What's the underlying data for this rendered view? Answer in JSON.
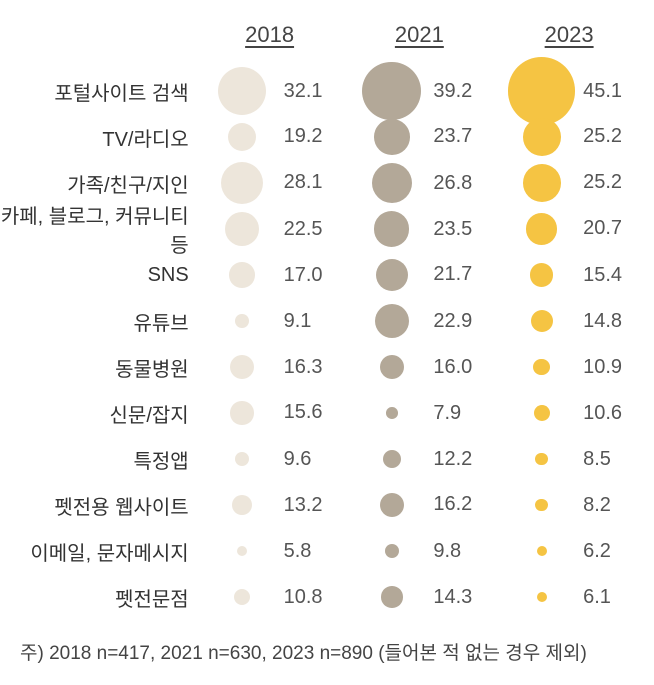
{
  "chart": {
    "type": "bubble-table",
    "years": [
      "2018",
      "2021",
      "2023"
    ],
    "year_fontsize": 22,
    "year_color": "#444444",
    "year_underline": true,
    "label_fontsize": 20,
    "label_color": "#333333",
    "value_fontsize": 20,
    "value_color": "#555555",
    "background_color": "#ffffff",
    "column_colors": [
      "#ede6db",
      "#b3a898",
      "#f5c443"
    ],
    "bubble_scale_factor": 1.5,
    "max_bubble_diameter": 68,
    "min_bubble_diameter": 10,
    "rows": [
      {
        "label": "포털사이트 검색",
        "values": [
          32.1,
          39.2,
          45.1
        ]
      },
      {
        "label": "TV/라디오",
        "values": [
          19.2,
          23.7,
          25.2
        ]
      },
      {
        "label": "가족/친구/지인",
        "values": [
          28.1,
          26.8,
          25.2
        ]
      },
      {
        "label": "카페, 블로그, 커뮤니티 등",
        "values": [
          22.5,
          23.5,
          20.7
        ]
      },
      {
        "label": "SNS",
        "values": [
          17.0,
          21.7,
          15.4
        ]
      },
      {
        "label": "유튜브",
        "values": [
          9.1,
          22.9,
          14.8
        ]
      },
      {
        "label": "동물병원",
        "values": [
          16.3,
          16.0,
          10.9
        ]
      },
      {
        "label": "신문/잡지",
        "values": [
          15.6,
          7.9,
          10.6
        ]
      },
      {
        "label": "특정앱",
        "values": [
          9.6,
          12.2,
          8.5
        ]
      },
      {
        "label": "펫전용 웹사이트",
        "values": [
          13.2,
          16.2,
          8.2
        ]
      },
      {
        "label": "이메일, 문자메시지",
        "values": [
          5.8,
          9.8,
          6.2
        ]
      },
      {
        "label": "펫전문점",
        "values": [
          10.8,
          14.3,
          6.1
        ]
      }
    ],
    "footnote": "주) 2018 n=417, 2021 n=630, 2023 n=890 (들어본 적 없는 경우 제외)",
    "footnote_fontsize": 19,
    "footnote_color": "#444444"
  }
}
